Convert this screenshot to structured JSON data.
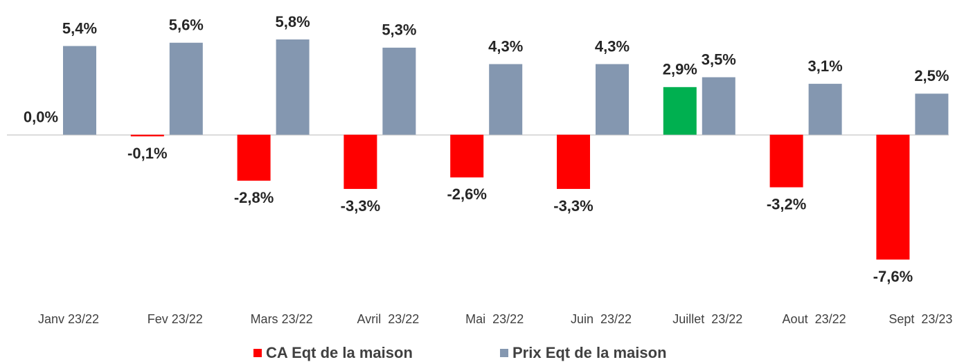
{
  "chart_data": {
    "type": "bar",
    "categories": [
      "Janv 23/22",
      "Fev 23/22",
      "Mars 23/22",
      "Avril  23/22",
      "Mai  23/22",
      "Juin  23/22",
      "Juillet  23/22",
      "Aout  23/22",
      "Sept  23/23"
    ],
    "series": [
      {
        "name": "CA Eqt de la maison",
        "color": "#ff0000",
        "colors": [
          "#ff0000",
          "#ff0000",
          "#ff0000",
          "#ff0000",
          "#ff0000",
          "#ff0000",
          "#00b050",
          "#ff0000",
          "#ff0000"
        ],
        "values": [
          0.0,
          -0.1,
          -2.8,
          -3.3,
          -2.6,
          -3.3,
          2.9,
          -3.2,
          -7.6
        ],
        "value_labels": [
          "0,0%",
          "-0,1%",
          "-2,8%",
          "-3,3%",
          "-2,6%",
          "-3,3%",
          "2,9%",
          "-3,2%",
          "-7,6%"
        ]
      },
      {
        "name": "Prix Eqt de la maison",
        "color": "#8497b0",
        "values": [
          5.4,
          5.6,
          5.8,
          5.3,
          4.3,
          4.3,
          3.5,
          3.1,
          2.5
        ],
        "value_labels": [
          "5,4%",
          "5,6%",
          "5,8%",
          "5,3%",
          "4,3%",
          "4,3%",
          "3,5%",
          "3,1%",
          "2,5%"
        ]
      }
    ]
  }
}
